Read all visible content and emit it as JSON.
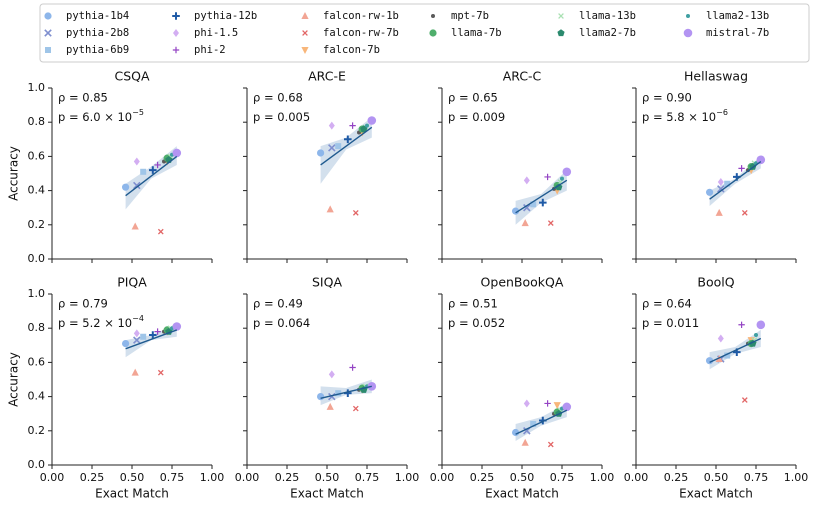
{
  "models": [
    {
      "name": "pythia-1b4",
      "color": "#8db6ea",
      "marker": "circle"
    },
    {
      "name": "pythia-2b8",
      "color": "#7f8fcf",
      "marker": "x"
    },
    {
      "name": "pythia-6b9",
      "color": "#9fc5e8",
      "marker": "square"
    },
    {
      "name": "pythia-12b",
      "color": "#1f5aa6",
      "marker": "plus"
    },
    {
      "name": "phi-1.5",
      "color": "#d3aef2",
      "marker": "diamond"
    },
    {
      "name": "phi-2",
      "color": "#9444c4",
      "marker": "thinplus"
    },
    {
      "name": "falcon-rw-1b",
      "color": "#f2a594",
      "marker": "tri-up"
    },
    {
      "name": "falcon-rw-7b",
      "color": "#e26666",
      "marker": "smallx"
    },
    {
      "name": "falcon-7b",
      "color": "#f8b67a",
      "marker": "tri-down"
    },
    {
      "name": "mpt-7b",
      "color": "#5a5a5a",
      "marker": "dot"
    },
    {
      "name": "llama-7b",
      "color": "#4fae6c",
      "marker": "circle"
    },
    {
      "name": "llama-13b",
      "color": "#a9e1b3",
      "marker": "smallx"
    },
    {
      "name": "llama2-7b",
      "color": "#2b8a6e",
      "marker": "pentagon"
    },
    {
      "name": "llama2-13b",
      "color": "#3f9fa2",
      "marker": "dot"
    },
    {
      "name": "mistral-7b",
      "color": "#b394f2",
      "marker": "bigcircle"
    }
  ],
  "exact_match": [
    0.46,
    0.53,
    0.57,
    0.63,
    0.53,
    0.66,
    0.52,
    0.68,
    0.72,
    0.7,
    0.72,
    0.74,
    0.73,
    0.75,
    0.78
  ],
  "xlabel": "Exact Match",
  "ylabel": "Accuracy",
  "chart_data": [
    {
      "type": "scatter",
      "title": "CSQA",
      "rho": "ρ = 0.85",
      "p": "p = 6.0 × 10",
      "p_exp": "−5",
      "values": [
        0.42,
        0.43,
        0.51,
        0.52,
        0.57,
        0.55,
        0.19,
        0.16,
        0.57,
        0.57,
        0.59,
        0.6,
        0.58,
        0.61,
        0.62
      ],
      "fit_x": [
        0.46,
        0.78
      ],
      "fit_y": [
        0.37,
        0.6
      ],
      "band_x": [
        0.46,
        0.62,
        0.78
      ],
      "band_lower": [
        0.29,
        0.47,
        0.55
      ],
      "band_upper": [
        0.44,
        0.54,
        0.66
      ]
    },
    {
      "type": "scatter",
      "title": "ARC-E",
      "rho": "ρ = 0.68",
      "p": "p = 0.005",
      "values": [
        0.62,
        0.65,
        0.66,
        0.7,
        0.78,
        0.78,
        0.29,
        0.27,
        0.74,
        0.74,
        0.76,
        0.77,
        0.76,
        0.78,
        0.81
      ],
      "fit_x": [
        0.46,
        0.78
      ],
      "fit_y": [
        0.55,
        0.77
      ],
      "band_x": [
        0.46,
        0.62,
        0.78
      ],
      "band_lower": [
        0.44,
        0.64,
        0.71
      ],
      "band_upper": [
        0.66,
        0.71,
        0.83
      ]
    },
    {
      "type": "scatter",
      "title": "ARC-C",
      "rho": "ρ = 0.65",
      "p": "p = 0.009",
      "values": [
        0.28,
        0.3,
        0.32,
        0.33,
        0.46,
        0.48,
        0.21,
        0.21,
        0.4,
        0.41,
        0.43,
        0.45,
        0.42,
        0.47,
        0.51
      ],
      "fit_x": [
        0.46,
        0.78
      ],
      "fit_y": [
        0.27,
        0.46
      ],
      "band_x": [
        0.46,
        0.62,
        0.78
      ],
      "band_lower": [
        0.2,
        0.33,
        0.4
      ],
      "band_upper": [
        0.34,
        0.38,
        0.52
      ]
    },
    {
      "type": "scatter",
      "title": "Hellaswag",
      "rho": "ρ = 0.90",
      "p": "p = 5.8 × 10",
      "p_exp": "−6",
      "values": [
        0.39,
        0.41,
        0.44,
        0.48,
        0.45,
        0.53,
        0.27,
        0.27,
        0.52,
        0.52,
        0.54,
        0.56,
        0.54,
        0.56,
        0.58
      ],
      "fit_x": [
        0.46,
        0.78
      ],
      "fit_y": [
        0.35,
        0.57
      ],
      "band_x": [
        0.46,
        0.62,
        0.78
      ],
      "band_lower": [
        0.31,
        0.44,
        0.53
      ],
      "band_upper": [
        0.4,
        0.47,
        0.6
      ]
    },
    {
      "type": "scatter",
      "title": "PIQA",
      "rho": "ρ = 0.79",
      "p": "p = 5.2 × 10",
      "p_exp": "−4",
      "values": [
        0.71,
        0.73,
        0.75,
        0.76,
        0.77,
        0.78,
        0.54,
        0.54,
        0.78,
        0.78,
        0.79,
        0.8,
        0.78,
        0.8,
        0.81
      ],
      "fit_x": [
        0.46,
        0.78
      ],
      "fit_y": [
        0.68,
        0.79
      ],
      "band_x": [
        0.46,
        0.62,
        0.78
      ],
      "band_lower": [
        0.63,
        0.73,
        0.75
      ],
      "band_upper": [
        0.73,
        0.76,
        0.82
      ]
    },
    {
      "type": "scatter",
      "title": "SIQA",
      "rho": "ρ = 0.49",
      "p": "p = 0.064",
      "values": [
        0.4,
        0.4,
        0.42,
        0.42,
        0.53,
        0.57,
        0.34,
        0.33,
        0.44,
        0.44,
        0.45,
        0.46,
        0.44,
        0.46,
        0.46
      ],
      "fit_x": [
        0.46,
        0.78
      ],
      "fit_y": [
        0.39,
        0.46
      ],
      "band_x": [
        0.46,
        0.62,
        0.78
      ],
      "band_lower": [
        0.35,
        0.41,
        0.42
      ],
      "band_upper": [
        0.46,
        0.45,
        0.5
      ]
    },
    {
      "type": "scatter",
      "title": "OpenBookQA",
      "rho": "ρ = 0.51",
      "p": "p = 0.052",
      "values": [
        0.19,
        0.2,
        0.24,
        0.26,
        0.36,
        0.36,
        0.13,
        0.12,
        0.35,
        0.3,
        0.31,
        0.32,
        0.3,
        0.33,
        0.34
      ],
      "fit_x": [
        0.46,
        0.78
      ],
      "fit_y": [
        0.18,
        0.32
      ],
      "band_x": [
        0.46,
        0.62,
        0.78
      ],
      "band_lower": [
        0.14,
        0.23,
        0.28
      ],
      "band_upper": [
        0.24,
        0.28,
        0.36
      ]
    },
    {
      "type": "scatter",
      "title": "BoolQ",
      "rho": "ρ = 0.64",
      "p": "p = 0.011",
      "values": [
        0.61,
        0.62,
        0.64,
        0.66,
        0.74,
        0.82,
        0.62,
        0.38,
        0.73,
        0.71,
        0.71,
        0.73,
        0.71,
        0.76,
        0.82
      ],
      "fit_x": [
        0.46,
        0.78
      ],
      "fit_y": [
        0.6,
        0.74
      ],
      "band_x": [
        0.46,
        0.62,
        0.78
      ],
      "band_lower": [
        0.56,
        0.65,
        0.69
      ],
      "band_upper": [
        0.66,
        0.69,
        0.79
      ]
    }
  ],
  "xlim": [
    0,
    1
  ],
  "ylim": [
    0,
    1
  ],
  "xticks": [
    {
      "value": 0,
      "label": "0.00"
    },
    {
      "value": 0.25,
      "label": "0.25"
    },
    {
      "value": 0.5,
      "label": "0.50"
    },
    {
      "value": 0.75,
      "label": "0.75"
    },
    {
      "value": 1,
      "label": "1.00"
    }
  ],
  "yticks": [
    {
      "value": 0,
      "label": "0.0"
    },
    {
      "value": 0.2,
      "label": "0.2"
    },
    {
      "value": 0.4,
      "label": "0.4"
    },
    {
      "value": 0.6,
      "label": "0.6"
    },
    {
      "value": 0.8,
      "label": "0.8"
    },
    {
      "value": 1,
      "label": "1.0"
    }
  ]
}
